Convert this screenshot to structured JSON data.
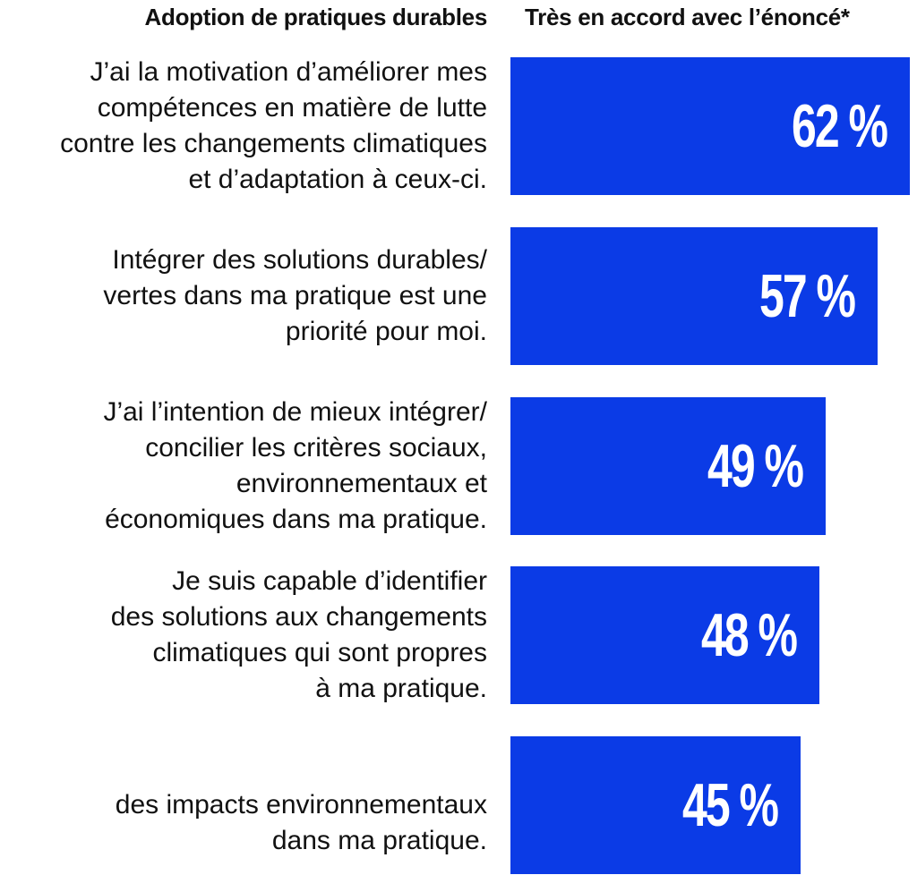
{
  "chart_data": {
    "type": "bar",
    "orientation": "horizontal",
    "column_headers": {
      "left": "Adoption de pratiques durables",
      "right": "Très en accord avec l’énoncé*"
    },
    "categories": [
      "J’ai la motivation d’améliorer mes compétences en matière de lutte contre les changements climatiques et d’adaptation à ceux-ci.",
      "Intégrer des solutions durables/ vertes dans ma pratique est une priorité pour moi.",
      "J’ai l’intention de mieux intégrer/ concilier les critères sociaux, environnementaux et économiques dans ma pratique.",
      "Je suis capable d’identifier des solutions aux changements climatiques qui sont propres à ma pratique.",
      "des impacts environnementaux dans ma pratique."
    ],
    "category_lines": [
      [
        "J’ai la motivation d’améliorer mes",
        "compétences en matière de lutte",
        "contre les changements climatiques",
        "et d’adaptation à ceux-ci."
      ],
      [
        "Intégrer des solutions durables/",
        "vertes dans ma pratique est une",
        "priorité pour moi."
      ],
      [
        "J’ai l’intention de mieux intégrer/",
        "concilier les critères sociaux,",
        "environnementaux et",
        "économiques dans ma pratique."
      ],
      [
        "Je suis capable d’identifier",
        "des solutions aux changements",
        "climatiques qui sont propres",
        "à ma pratique."
      ],
      [
        "des impacts environnementaux",
        "dans ma pratique."
      ]
    ],
    "values": [
      62,
      57,
      49,
      48,
      45
    ],
    "value_labels": [
      "62 %",
      "57 %",
      "49 %",
      "48 %",
      "45 %"
    ],
    "unit": "%",
    "bar_color": "#0b3be6",
    "label_color": "#ffffff",
    "grid": false,
    "legend": "none"
  }
}
